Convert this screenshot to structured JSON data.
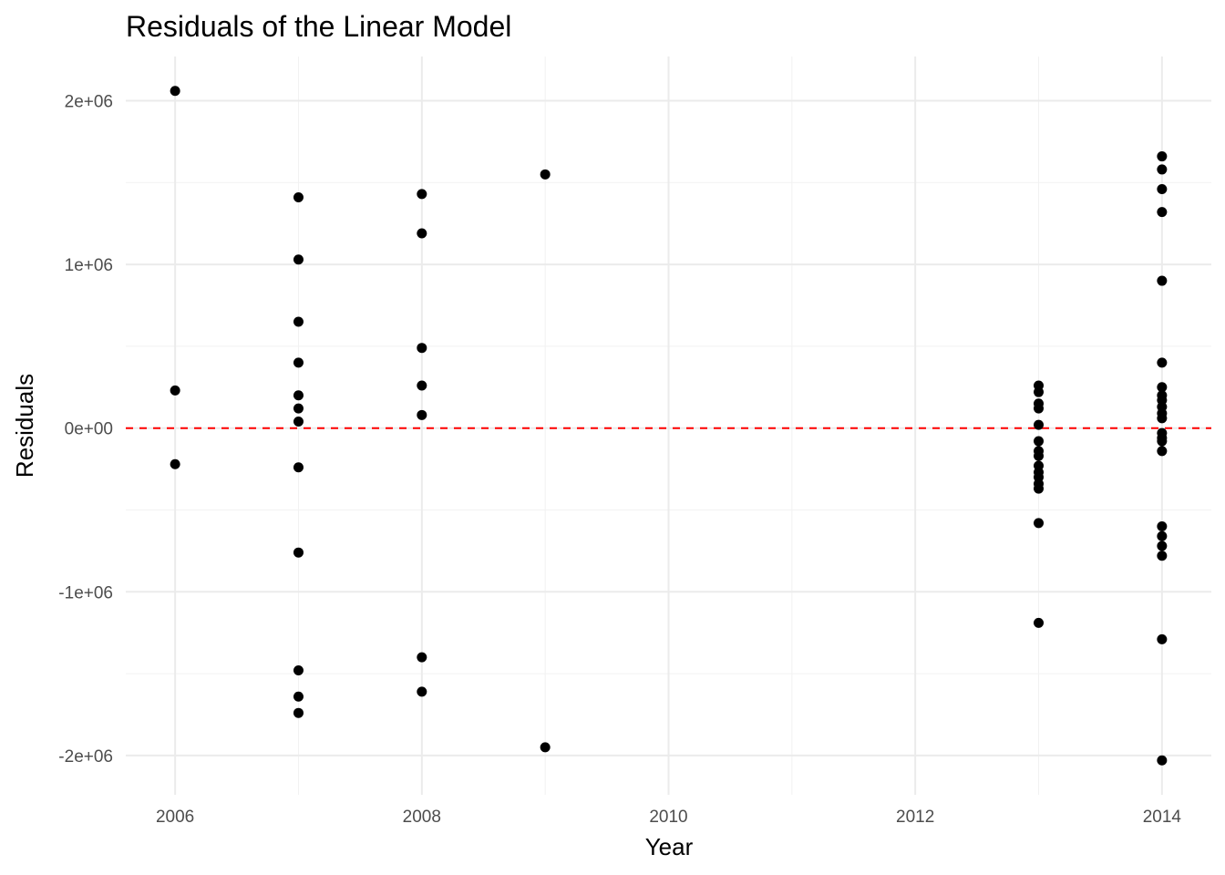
{
  "chart_data": {
    "type": "scatter",
    "title": "Residuals of the Linear Model",
    "xlabel": "Year",
    "ylabel": "Residuals",
    "xlim": [
      2005.6,
      2014.4
    ],
    "ylim": [
      -2240000,
      2270000
    ],
    "x_ticks": [
      2006,
      2008,
      2010,
      2012,
      2014
    ],
    "x_tick_labels": [
      "2006",
      "2008",
      "2010",
      "2012",
      "2014"
    ],
    "y_ticks": [
      -2000000,
      -1000000,
      0,
      1000000,
      2000000
    ],
    "y_tick_labels": [
      "-2e+06",
      "-1e+06",
      "0e+00",
      "1e+06",
      "2e+06"
    ],
    "grid": true,
    "reference_line": {
      "y": 0,
      "style": "dashed",
      "color": "#ff0000"
    },
    "point_color": "#000000",
    "points": [
      {
        "x": 2006,
        "y": 2060000
      },
      {
        "x": 2006,
        "y": 230000
      },
      {
        "x": 2006,
        "y": -220000
      },
      {
        "x": 2007,
        "y": 1410000
      },
      {
        "x": 2007,
        "y": 1030000
      },
      {
        "x": 2007,
        "y": 650000
      },
      {
        "x": 2007,
        "y": 400000
      },
      {
        "x": 2007,
        "y": 200000
      },
      {
        "x": 2007,
        "y": 120000
      },
      {
        "x": 2007,
        "y": 40000
      },
      {
        "x": 2007,
        "y": -240000
      },
      {
        "x": 2007,
        "y": -760000
      },
      {
        "x": 2007,
        "y": -1480000
      },
      {
        "x": 2007,
        "y": -1640000
      },
      {
        "x": 2007,
        "y": -1740000
      },
      {
        "x": 2008,
        "y": 1430000
      },
      {
        "x": 2008,
        "y": 1190000
      },
      {
        "x": 2008,
        "y": 490000
      },
      {
        "x": 2008,
        "y": 260000
      },
      {
        "x": 2008,
        "y": 80000
      },
      {
        "x": 2008,
        "y": -1400000
      },
      {
        "x": 2008,
        "y": -1610000
      },
      {
        "x": 2009,
        "y": 1550000
      },
      {
        "x": 2009,
        "y": -1950000
      },
      {
        "x": 2013,
        "y": 260000
      },
      {
        "x": 2013,
        "y": 220000
      },
      {
        "x": 2013,
        "y": 150000
      },
      {
        "x": 2013,
        "y": 120000
      },
      {
        "x": 2013,
        "y": 20000
      },
      {
        "x": 2013,
        "y": -80000
      },
      {
        "x": 2013,
        "y": -140000
      },
      {
        "x": 2013,
        "y": -170000
      },
      {
        "x": 2013,
        "y": -230000
      },
      {
        "x": 2013,
        "y": -270000
      },
      {
        "x": 2013,
        "y": -300000
      },
      {
        "x": 2013,
        "y": -340000
      },
      {
        "x": 2013,
        "y": -370000
      },
      {
        "x": 2013,
        "y": -580000
      },
      {
        "x": 2013,
        "y": -1190000
      },
      {
        "x": 2014,
        "y": 1660000
      },
      {
        "x": 2014,
        "y": 1580000
      },
      {
        "x": 2014,
        "y": 1460000
      },
      {
        "x": 2014,
        "y": 1320000
      },
      {
        "x": 2014,
        "y": 900000
      },
      {
        "x": 2014,
        "y": 400000
      },
      {
        "x": 2014,
        "y": 250000
      },
      {
        "x": 2014,
        "y": 200000
      },
      {
        "x": 2014,
        "y": 170000
      },
      {
        "x": 2014,
        "y": 130000
      },
      {
        "x": 2014,
        "y": 90000
      },
      {
        "x": 2014,
        "y": 60000
      },
      {
        "x": 2014,
        "y": -30000
      },
      {
        "x": 2014,
        "y": -60000
      },
      {
        "x": 2014,
        "y": -80000
      },
      {
        "x": 2014,
        "y": -140000
      },
      {
        "x": 2014,
        "y": -600000
      },
      {
        "x": 2014,
        "y": -660000
      },
      {
        "x": 2014,
        "y": -720000
      },
      {
        "x": 2014,
        "y": -780000
      },
      {
        "x": 2014,
        "y": -1290000
      },
      {
        "x": 2014,
        "y": -2030000
      }
    ]
  }
}
